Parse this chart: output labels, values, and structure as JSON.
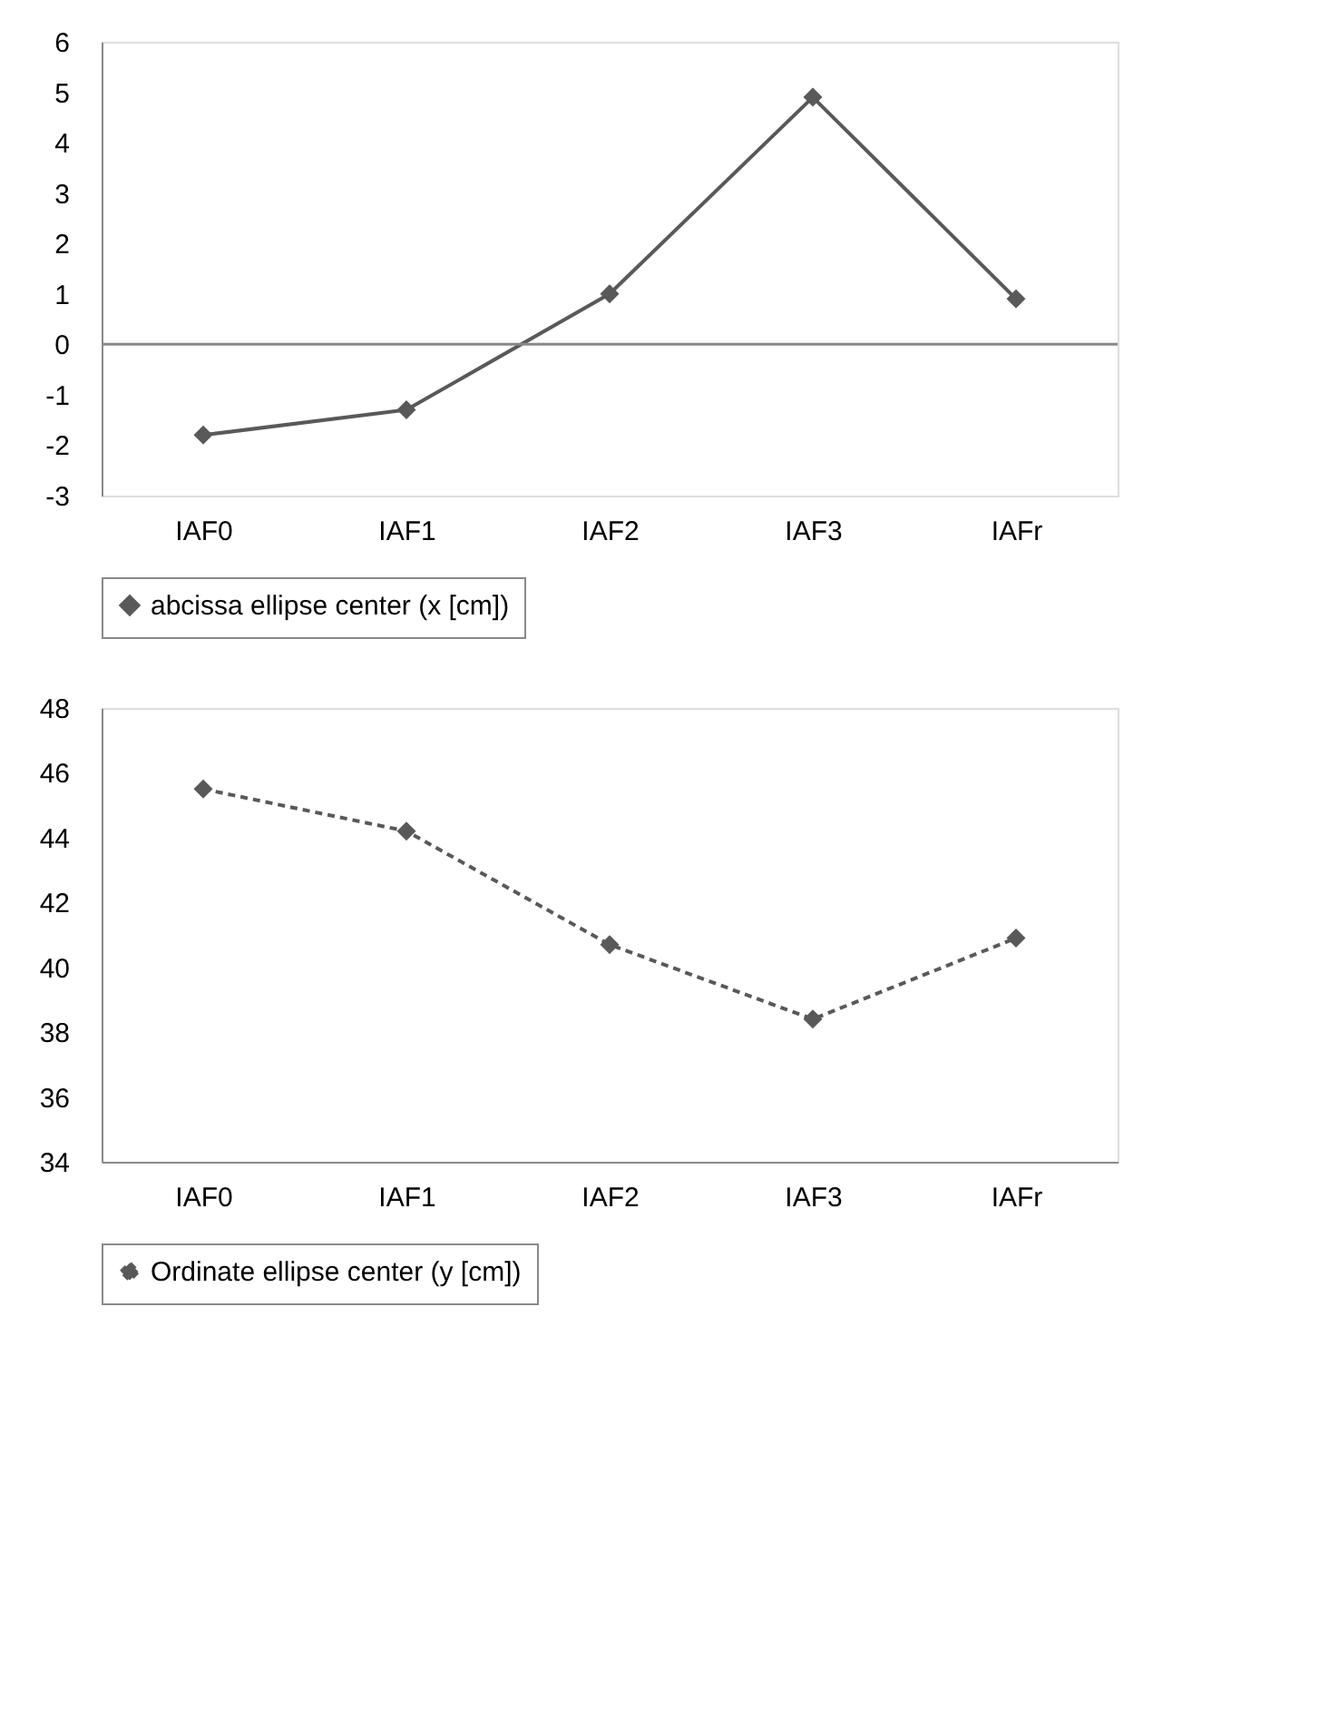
{
  "chart_data": [
    {
      "type": "line",
      "categories": [
        "IAF0",
        "IAF1",
        "IAF2",
        "IAF3",
        "IAFr"
      ],
      "series": [
        {
          "name": "abcissa ellipse center (x [cm])",
          "color": "#595959",
          "values": [
            -1.8,
            -1.3,
            1.0,
            4.9,
            0.9
          ]
        }
      ],
      "ylim": [
        -3,
        6
      ],
      "yticks": [
        -3,
        -2,
        -1,
        0,
        1,
        2,
        3,
        4,
        5,
        6
      ],
      "grid": false,
      "legend": "bottom",
      "marker": "diamond",
      "line_style": "solid",
      "ref_lines": [
        {
          "axis": "y",
          "value": 0,
          "color": "#898989"
        }
      ]
    },
    {
      "type": "line",
      "categories": [
        "IAF0",
        "IAF1",
        "IAF2",
        "IAF3",
        "IAFr"
      ],
      "series": [
        {
          "name": "Ordinate ellipse center (y [cm])",
          "color": "#595959",
          "values": [
            45.5,
            44.2,
            40.7,
            38.4,
            40.9
          ]
        }
      ],
      "ylim": [
        34,
        48
      ],
      "yticks": [
        34,
        36,
        38,
        40,
        42,
        44,
        46,
        48
      ],
      "grid": false,
      "legend": "bottom",
      "marker": "diamond",
      "line_style": "dashed"
    }
  ]
}
